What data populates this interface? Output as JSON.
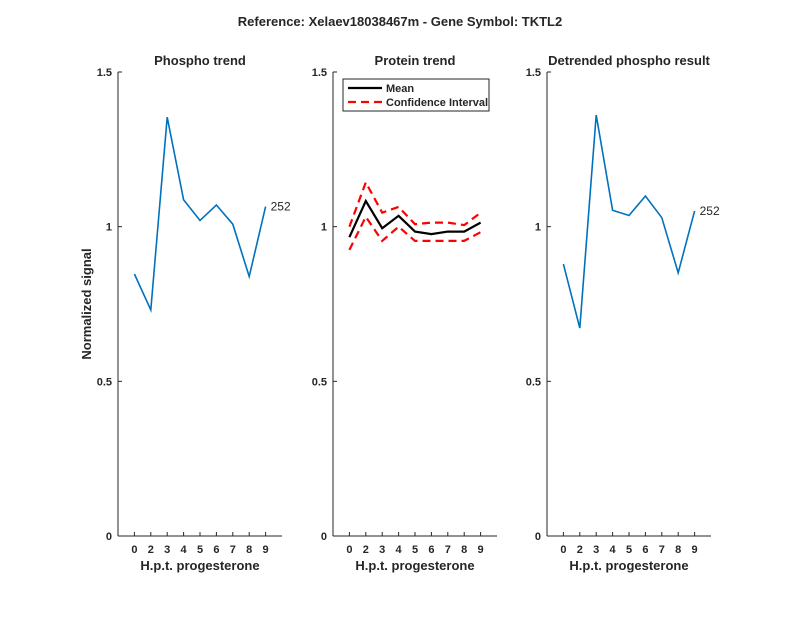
{
  "figure_title": "Reference:  Xelaev18038467m - Gene Symbol:  TKTL2",
  "chart_data": [
    {
      "type": "line",
      "title": "Phospho trend",
      "xlabel": "H.p.t. progesterone",
      "ylabel": "Normalized signal",
      "categories": [
        "0",
        "2",
        "3",
        "4",
        "5",
        "6",
        "7",
        "8",
        "9"
      ],
      "ylim": [
        0,
        1.5
      ],
      "yticks": [
        "0",
        "0.5",
        "1",
        "1.5"
      ],
      "grid": false,
      "series": [
        {
          "color": "#0072BD",
          "values": [
            0.847,
            0.731,
            1.354,
            1.087,
            1.02,
            1.07,
            1.008,
            0.839,
            1.065
          ]
        }
      ],
      "annotation": "252"
    },
    {
      "type": "line",
      "title": "Protein trend",
      "xlabel": "H.p.t. progesterone",
      "ylabel": "",
      "categories": [
        "0",
        "2",
        "3",
        "4",
        "5",
        "6",
        "7",
        "8",
        "9"
      ],
      "ylim": [
        0,
        1.5
      ],
      "yticks": [
        "0",
        "0.5",
        "1",
        "1.5"
      ],
      "grid": false,
      "legend_position": "top",
      "series": [
        {
          "name": "Mean",
          "color": "#000000",
          "style": "solid",
          "values": [
            0.966,
            1.083,
            0.995,
            1.035,
            0.984,
            0.976,
            0.984,
            0.984,
            1.013
          ]
        },
        {
          "name": "Confidence Interval",
          "color": "#FF0000",
          "style": "dashed",
          "values": [
            1.0,
            1.143,
            1.045,
            1.064,
            1.008,
            1.013,
            1.013,
            1.005,
            1.045
          ]
        },
        {
          "name": "",
          "color": "#FF0000",
          "style": "dashed",
          "values": [
            0.925,
            1.032,
            0.954,
            1.0,
            0.954,
            0.954,
            0.954,
            0.954,
            0.982
          ]
        }
      ]
    },
    {
      "type": "line",
      "title": "Detrended phospho result",
      "xlabel": "H.p.t. progesterone",
      "ylabel": "",
      "categories": [
        "0",
        "2",
        "3",
        "4",
        "5",
        "6",
        "7",
        "8",
        "9"
      ],
      "ylim": [
        0,
        1.5
      ],
      "yticks": [
        "0",
        "0.5",
        "1",
        "1.5"
      ],
      "grid": false,
      "series": [
        {
          "color": "#0072BD",
          "values": [
            0.879,
            0.672,
            1.361,
            1.053,
            1.036,
            1.099,
            1.029,
            0.851,
            1.051
          ]
        }
      ],
      "annotation": "252"
    }
  ]
}
